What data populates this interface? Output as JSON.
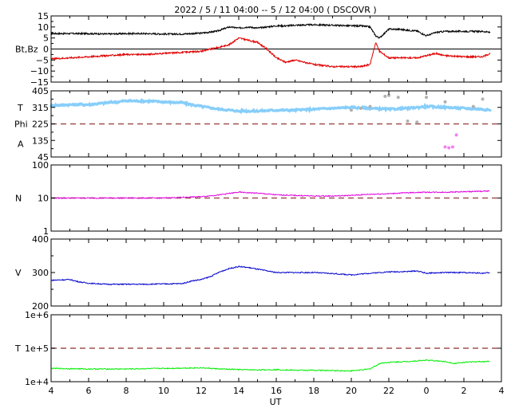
{
  "title": "2022 /  5 / 11   04:00 --  5 / 12   04:00 ( DSCOVR )",
  "xlabel": "UT",
  "x_ticks": [
    "4",
    "6",
    "8",
    "10",
    "12",
    "14",
    "16",
    "18",
    "20",
    "22",
    "0",
    "2",
    "4"
  ],
  "colors": {
    "bt": "#000000",
    "bz": "#e00000",
    "temp_panel_phi": "#87cefa",
    "phi_gray": "#b0b0b0",
    "alpha": "#ee82ee",
    "density": "#e000e0",
    "velocity": "#0000cc",
    "temperature": "#00ee00",
    "dashed": "#a05050"
  },
  "chart_data": [
    {
      "type": "line",
      "name": "magnetic-field",
      "ylabel": "Bt,Bz",
      "y_ticks": [
        "15",
        "10",
        "5",
        "0",
        "−5",
        "−10",
        "−15"
      ],
      "ylim": [
        -15,
        15
      ],
      "reference_line": 0,
      "x": [
        4,
        5,
        6,
        7,
        8,
        9,
        10,
        11,
        12,
        12.8,
        13.5,
        14,
        14.5,
        15,
        15.5,
        16,
        16.5,
        17,
        18,
        19,
        20,
        20.5,
        21,
        21.3,
        21.5,
        22,
        22.5,
        23,
        23.5,
        24,
        24.5,
        25,
        26,
        27,
        27.4
      ],
      "series": [
        {
          "name": "Bt",
          "values": [
            7,
            7,
            7,
            6.8,
            7,
            7,
            6.8,
            6.8,
            7.2,
            8,
            10,
            9.5,
            10,
            9.5,
            10,
            10.5,
            10.5,
            10.8,
            11,
            10.8,
            10.5,
            10.5,
            10,
            6,
            5,
            9,
            9,
            8.5,
            8.2,
            6,
            7.5,
            8,
            8,
            8,
            7.5
          ]
        },
        {
          "name": "Bz",
          "values": [
            -4.5,
            -4,
            -3.5,
            -3,
            -2.5,
            -2.5,
            -2,
            -1.5,
            -1,
            0.5,
            2,
            5,
            4,
            3,
            0,
            -4,
            -6,
            -5,
            -7,
            -8,
            -8,
            -8,
            -7,
            3,
            -1,
            -4,
            -4,
            -4,
            -4,
            -3,
            -2,
            -3,
            -3.5,
            -3.5,
            -2
          ]
        }
      ]
    },
    {
      "type": "scatter",
      "name": "temperature-phi-alpha",
      "ylabel_lines": [
        "T",
        "Phi",
        "A"
      ],
      "y_ticks": [
        "405",
        "315",
        "225",
        "135",
        "45"
      ],
      "ylim": [
        45,
        405
      ],
      "reference_line": 225,
      "x": [
        4,
        5,
        6,
        7,
        8,
        9,
        10,
        11,
        12,
        13,
        14,
        15,
        16,
        17,
        18,
        19,
        20,
        21,
        22,
        23,
        24,
        25,
        26,
        27,
        27.4
      ],
      "series": [
        {
          "name": "T",
          "values": [
            325,
            330,
            330,
            340,
            350,
            350,
            345,
            340,
            320,
            305,
            295,
            295,
            300,
            300,
            305,
            310,
            315,
            310,
            305,
            310,
            320,
            315,
            310,
            305,
            300
          ]
        },
        {
          "name": "Phi",
          "x": [
            20,
            20.5,
            21,
            21.8,
            22,
            22.5,
            23,
            23.5,
            24,
            25,
            26.5,
            27
          ],
          "values": [
            300,
            310,
            320,
            375,
            380,
            370,
            240,
            235,
            370,
            345,
            320,
            360
          ]
        },
        {
          "name": "A",
          "x": [
            25,
            25.2,
            25.4,
            25.6
          ],
          "values": [
            100,
            95,
            100,
            165
          ]
        }
      ]
    },
    {
      "type": "line",
      "name": "density",
      "ylabel": "N",
      "log_scale": true,
      "y_ticks": [
        "100",
        "10",
        "1"
      ],
      "ylim": [
        1,
        100
      ],
      "reference_line": 10,
      "x": [
        4,
        6,
        8,
        10,
        11,
        12,
        13,
        14,
        15,
        16,
        17,
        18,
        19,
        20,
        21,
        22,
        23,
        24,
        25,
        26,
        27,
        27.4
      ],
      "series": [
        {
          "name": "N",
          "values": [
            10,
            10,
            10,
            10,
            10.5,
            11,
            12.5,
            15,
            14,
            12.5,
            12,
            11.5,
            11.5,
            12,
            13,
            13.5,
            14.5,
            15,
            15,
            15.5,
            16,
            16.5
          ]
        }
      ]
    },
    {
      "type": "line",
      "name": "velocity",
      "ylabel": "V",
      "y_ticks": [
        "400",
        "300",
        "200"
      ],
      "ylim": [
        200,
        400
      ],
      "x": [
        4,
        5,
        5.5,
        6,
        7,
        8,
        9,
        10,
        11,
        11.5,
        12,
        12.5,
        13,
        13.5,
        14,
        14.5,
        15,
        15.5,
        16,
        17,
        18,
        19,
        20,
        21,
        22,
        23,
        23.5,
        24,
        25,
        26,
        27,
        27.4
      ],
      "series": [
        {
          "name": "V",
          "values": [
            277,
            279,
            272,
            268,
            265,
            265,
            265,
            266,
            267,
            275,
            279,
            288,
            302,
            312,
            318,
            315,
            310,
            305,
            300,
            300,
            300,
            297,
            293,
            298,
            302,
            303,
            305,
            298,
            300,
            300,
            298,
            300
          ]
        }
      ]
    },
    {
      "type": "line",
      "name": "proton-temperature",
      "ylabel": "T",
      "log_scale": true,
      "y_ticks": [
        "1e+6",
        "1e+5",
        "1e+4"
      ],
      "ylim": [
        10000,
        1000000
      ],
      "reference_line": 100000,
      "x": [
        4,
        6,
        8,
        10,
        12,
        13,
        14,
        15,
        16,
        17,
        18,
        19,
        20,
        21,
        21.3,
        21.6,
        22,
        23,
        24,
        25,
        25.5,
        26,
        27,
        27.4
      ],
      "series": [
        {
          "name": "T",
          "values": [
            25000,
            24000,
            24000,
            25000,
            26000,
            24000,
            23000,
            22500,
            23000,
            22000,
            22000,
            21500,
            21000,
            24000,
            30000,
            36000,
            38000,
            40000,
            44000,
            40000,
            35000,
            38000,
            40000,
            40000
          ]
        }
      ]
    }
  ]
}
